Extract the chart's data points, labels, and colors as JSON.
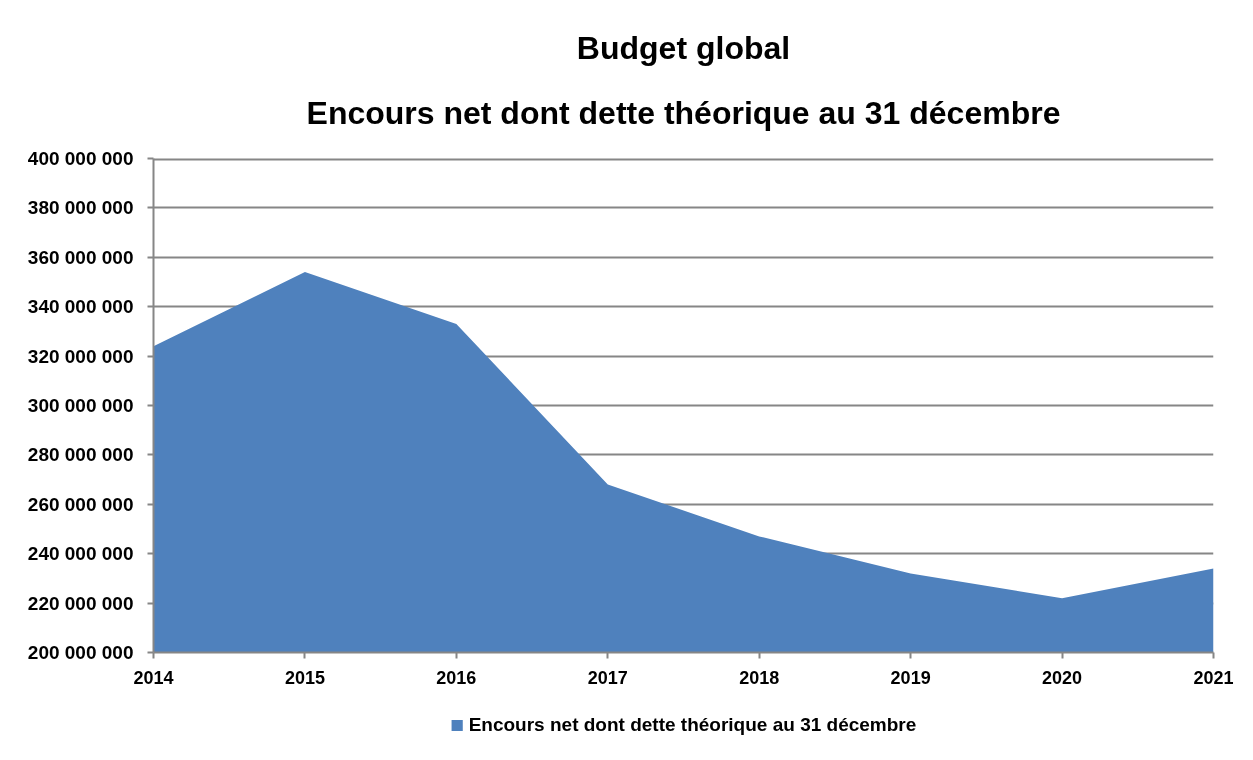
{
  "chart_data": {
    "type": "area",
    "title": "Budget global",
    "subtitle": "Encours net dont dette théorique au 31 décembre",
    "categories": [
      "2014",
      "2015",
      "2016",
      "2017",
      "2018",
      "2019",
      "2020",
      "2021"
    ],
    "series": [
      {
        "name": "Encours net dont dette théorique au 31 décembre",
        "color": "#4f81bd",
        "values": [
          324000000,
          354000000,
          333000000,
          268000000,
          247000000,
          232000000,
          222000000,
          234000000
        ]
      }
    ],
    "ylim": [
      200000000,
      400000000
    ],
    "yticks": [
      {
        "value": 200000000,
        "label": "200 000 000"
      },
      {
        "value": 220000000,
        "label": "220 000 000"
      },
      {
        "value": 240000000,
        "label": "240 000 000"
      },
      {
        "value": 260000000,
        "label": "260 000 000"
      },
      {
        "value": 280000000,
        "label": "280 000 000"
      },
      {
        "value": 300000000,
        "label": "300 000 000"
      },
      {
        "value": 320000000,
        "label": "320 000 000"
      },
      {
        "value": 340000000,
        "label": "340 000 000"
      },
      {
        "value": 360000000,
        "label": "360 000 000"
      },
      {
        "value": 380000000,
        "label": "380 000 000"
      },
      {
        "value": 400000000,
        "label": "400 000 000"
      }
    ],
    "grid": "y",
    "legend": "bottom"
  }
}
